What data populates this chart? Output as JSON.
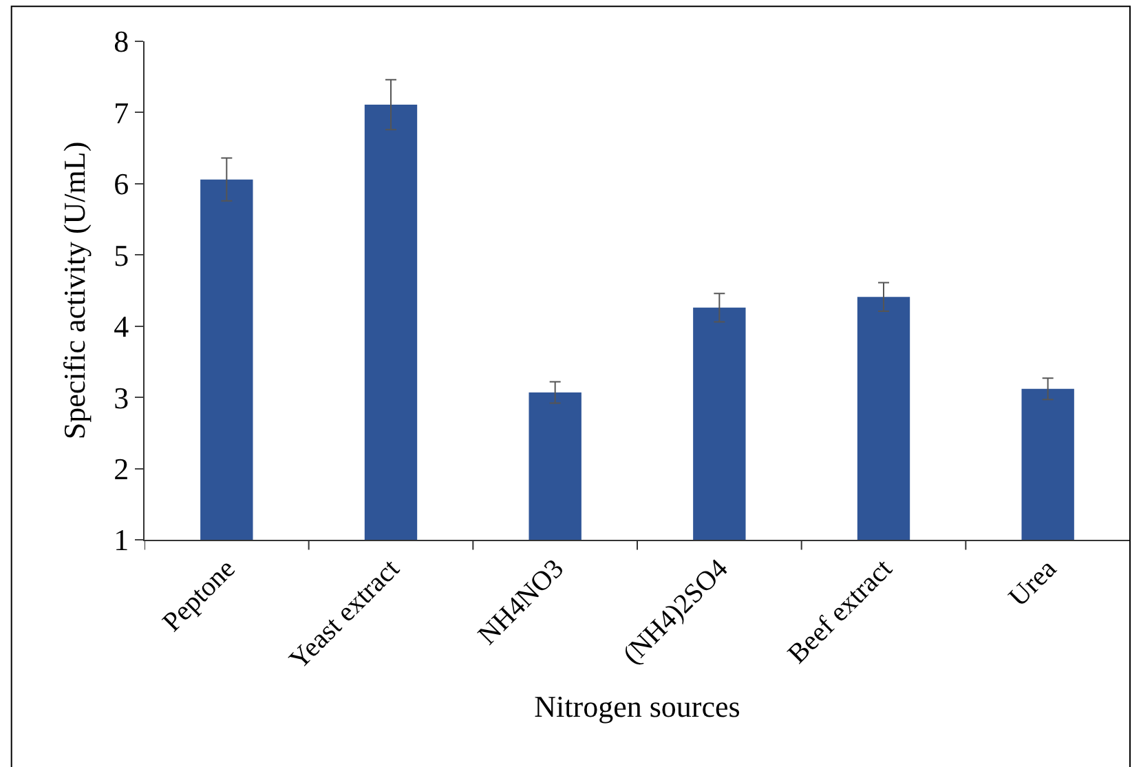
{
  "chart_data": {
    "type": "bar",
    "xlabel": "Nitrogen sources",
    "ylabel": "Specific activity (U/mL)",
    "categories": [
      "Peptone",
      "Yeast extract",
      "NH4NO3",
      "(NH4)2SO4",
      "Beef extract",
      "Urea"
    ],
    "values": [
      6.06,
      7.11,
      3.07,
      4.26,
      4.41,
      3.12
    ],
    "errors": [
      0.3,
      0.35,
      0.15,
      0.2,
      0.2,
      0.15
    ],
    "color": "#2f5597",
    "ylim": [
      1,
      8
    ],
    "yticks": [
      1,
      2,
      3,
      4,
      5,
      6,
      7,
      8
    ]
  }
}
